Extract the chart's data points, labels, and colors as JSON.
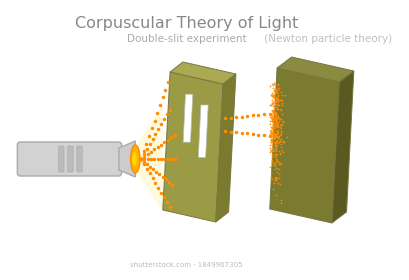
{
  "title": "Corpuscular Theory of Light",
  "subtitle": "Double-slit experiment",
  "subtitle_paren": " (Newton particle theory)",
  "bg_color": "#ffffff",
  "title_color": "#888888",
  "subtitle_color": "#aaaaaa",
  "dot_color": "#FF8C00",
  "panel1_face": "#9B9B45",
  "panel1_top": "#AAAA55",
  "panel1_right": "#7B7B30",
  "panel2_face": "#7A7A30",
  "panel2_top": "#8A8A40",
  "panel2_right": "#5A5A20",
  "slit_color": "#ffffff",
  "flash_body": "#d0d0d0",
  "flash_head": "#e0e0e0",
  "flash_lens": "#FFB300",
  "flash_glow": "#FFE566",
  "watermark": "shutterstock.com · 1849967305"
}
